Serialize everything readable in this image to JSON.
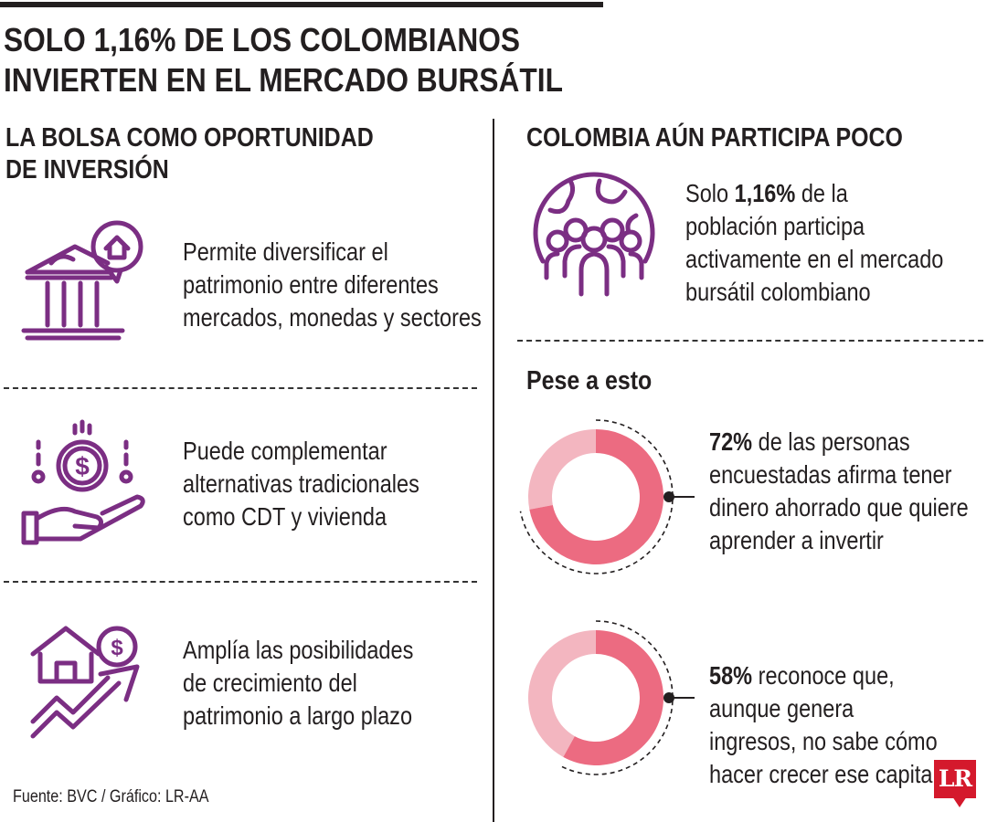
{
  "title": [
    "SOLO 1,16% DE LOS COLOMBIANOS",
    "INVIERTEN EN EL MERCADO BURSÁTIL"
  ],
  "left_section": {
    "heading": [
      "LA BOLSA COMO OPORTUNIDAD",
      "DE INVERSIÓN"
    ],
    "items": [
      {
        "icon": "bank-house-icon",
        "lines": [
          "Permite diversificar el",
          "patrimonio entre diferentes",
          "mercados, monedas y sectores"
        ]
      },
      {
        "icon": "hand-coin-icon",
        "lines": [
          "Puede complementar",
          "alternativas tradicionales",
          "como CDT y vivienda"
        ]
      },
      {
        "icon": "growth-house-icon",
        "lines": [
          "Amplía las posibilidades",
          "de crecimiento del",
          "patrimonio a largo plazo"
        ]
      }
    ]
  },
  "right_section": {
    "heading": "COLOMBIA AÚN PARTICIPA POCO",
    "stat": {
      "icon": "globe-people-icon",
      "prefix": "Solo ",
      "bold": "1,16%",
      "suffix": " de la",
      "lines": [
        "población participa",
        "activamente en el mercado",
        "bursátil colombiano"
      ]
    },
    "subheading": "Pese a esto"
  },
  "chart_data": [
    {
      "type": "pie",
      "value": 72,
      "unit": "%",
      "bold": "72%",
      "rest": " de las personas",
      "lines": [
        "encuestadas afirma tener",
        "dinero ahorrado que quiere",
        "aprender a invertir"
      ]
    },
    {
      "type": "pie",
      "value": 58,
      "unit": "%",
      "bold": "58%",
      "rest": " reconoce que,",
      "lines": [
        "aunque genera",
        "ingresos, no sabe cómo",
        "hacer crecer ese capital"
      ]
    }
  ],
  "colors": {
    "purple": "#7b2e83",
    "pink": "#ec6b81",
    "light_pink": "#f3b6c0",
    "dark": "#231f20",
    "logo_red": "#d4192c"
  },
  "source": "Fuente: BVC / Gráfico: LR-AA",
  "logo": "LR"
}
